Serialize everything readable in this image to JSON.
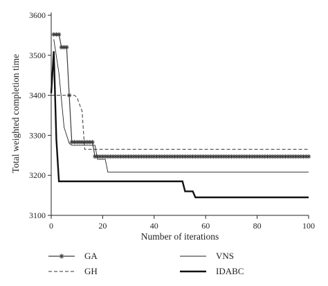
{
  "chart_data": {
    "type": "line",
    "title": "",
    "xlabel": "Number of iterations",
    "ylabel": "Total weighted completion time",
    "xlim": [
      0,
      100
    ],
    "ylim": [
      3100,
      3600
    ],
    "xticks": [
      0,
      20,
      40,
      60,
      80,
      100
    ],
    "yticks": [
      3100,
      3200,
      3300,
      3400,
      3500,
      3600
    ],
    "legend_position": "bottom",
    "grid": false,
    "series": [
      {
        "name": "GA",
        "style": "star-marker",
        "color": "#3a3a3a",
        "points": [
          [
            1,
            3552
          ],
          [
            2,
            3552
          ],
          [
            3,
            3552
          ],
          [
            4,
            3520
          ],
          [
            5,
            3520
          ],
          [
            6,
            3520
          ],
          [
            7,
            3400
          ],
          [
            8,
            3283
          ],
          [
            9,
            3283
          ],
          [
            10,
            3283
          ],
          [
            11,
            3283
          ],
          [
            12,
            3283
          ],
          [
            13,
            3283
          ],
          [
            14,
            3283
          ],
          [
            15,
            3283
          ],
          [
            16,
            3283
          ],
          [
            17,
            3247
          ],
          [
            100,
            3247
          ]
        ]
      },
      {
        "name": "GH",
        "style": "dashed",
        "color": "#333333",
        "points": [
          [
            0,
            3400
          ],
          [
            9,
            3400
          ],
          [
            10,
            3395
          ],
          [
            12,
            3360
          ],
          [
            13,
            3265
          ],
          [
            100,
            3265
          ]
        ]
      },
      {
        "name": "VNS",
        "style": "thin",
        "color": "#222222",
        "points": [
          [
            1,
            3540
          ],
          [
            3,
            3455
          ],
          [
            5,
            3320
          ],
          [
            7,
            3280
          ],
          [
            8,
            3275
          ],
          [
            17,
            3275
          ],
          [
            18,
            3240
          ],
          [
            21,
            3240
          ],
          [
            22,
            3208
          ],
          [
            100,
            3208
          ]
        ]
      },
      {
        "name": "IDABC",
        "style": "thick",
        "color": "#111111",
        "points": [
          [
            0,
            3405
          ],
          [
            1,
            3510
          ],
          [
            2,
            3290
          ],
          [
            3,
            3185
          ],
          [
            51,
            3185
          ],
          [
            52,
            3160
          ],
          [
            55,
            3160
          ],
          [
            56,
            3145
          ],
          [
            100,
            3145
          ]
        ]
      }
    ]
  }
}
